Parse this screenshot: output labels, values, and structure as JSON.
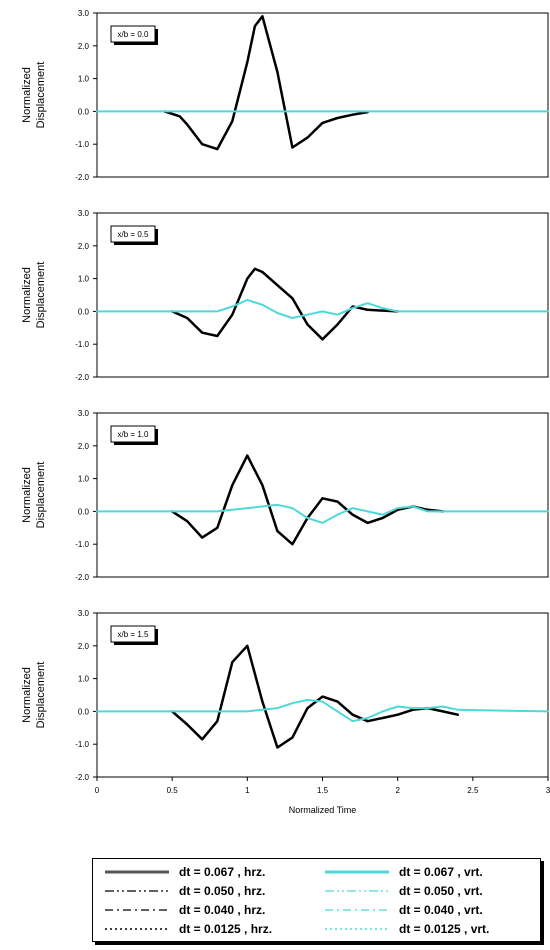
{
  "chart_data": [
    {
      "type": "line",
      "annotation": "x/b = 0.0",
      "ylabel": "Normalized Displacement",
      "ylim": [
        -2.0,
        3.0
      ],
      "xlim": [
        0,
        3
      ],
      "yticks": [
        "3.0",
        "2.0",
        "1.0",
        "0.0",
        "-1.0",
        "-2.0"
      ],
      "ytick_values": [
        3,
        2,
        1,
        0,
        -1,
        -2
      ],
      "grid": false,
      "series": [
        {
          "name": "dt = 0.067 , hrz.",
          "x": [
            0.45,
            0.55,
            0.6,
            0.7,
            0.8,
            0.9,
            1.0,
            1.05,
            1.1,
            1.2,
            1.3,
            1.4,
            1.5,
            1.6,
            1.7,
            1.8
          ],
          "y": [
            0.0,
            -0.15,
            -0.4,
            -1.0,
            -1.15,
            -0.3,
            1.5,
            2.6,
            2.9,
            1.2,
            -1.1,
            -0.8,
            -0.35,
            -0.2,
            -0.1,
            -0.02
          ]
        },
        {
          "name": "dt = 0.067 , vrt.",
          "x": [
            0.0,
            3.0
          ],
          "y": [
            0.0,
            0.0
          ]
        }
      ]
    },
    {
      "type": "line",
      "annotation": "x/b = 0.5",
      "ylabel": "Normalized Displacement",
      "ylim": [
        -2.0,
        3.0
      ],
      "xlim": [
        0,
        3
      ],
      "yticks": [
        "3.0",
        "2.0",
        "1.0",
        "0.0",
        "-1.0",
        "-2.0"
      ],
      "ytick_values": [
        3,
        2,
        1,
        0,
        -1,
        -2
      ],
      "grid": false,
      "series": [
        {
          "name": "dt = 0.067 , hrz.",
          "x": [
            0.5,
            0.6,
            0.7,
            0.8,
            0.9,
            1.0,
            1.05,
            1.1,
            1.2,
            1.3,
            1.4,
            1.5,
            1.6,
            1.7,
            1.8,
            2.0
          ],
          "y": [
            0.0,
            -0.2,
            -0.65,
            -0.75,
            -0.1,
            1.0,
            1.3,
            1.2,
            0.8,
            0.4,
            -0.4,
            -0.85,
            -0.4,
            0.15,
            0.05,
            0.0
          ]
        },
        {
          "name": "dt = 0.067 , vrt.",
          "x": [
            0.0,
            0.8,
            0.9,
            1.0,
            1.1,
            1.2,
            1.3,
            1.4,
            1.5,
            1.6,
            1.7,
            1.8,
            1.9,
            2.0,
            3.0
          ],
          "y": [
            0.0,
            0.0,
            0.15,
            0.35,
            0.2,
            -0.05,
            -0.2,
            -0.1,
            0.0,
            -0.1,
            0.1,
            0.25,
            0.1,
            0.0,
            0.0
          ]
        }
      ]
    },
    {
      "type": "line",
      "annotation": "x/b = 1.0",
      "ylabel": "Normalized Displacement",
      "ylim": [
        -2.0,
        3.0
      ],
      "xlim": [
        0,
        3
      ],
      "yticks": [
        "3.0",
        "2.0",
        "1.0",
        "0.0",
        "-1.0",
        "-2.0"
      ],
      "ytick_values": [
        3,
        2,
        1,
        0,
        -1,
        -2
      ],
      "grid": false,
      "series": [
        {
          "name": "dt = 0.067 , hrz.",
          "x": [
            0.5,
            0.6,
            0.7,
            0.8,
            0.9,
            1.0,
            1.1,
            1.2,
            1.3,
            1.4,
            1.5,
            1.6,
            1.7,
            1.8,
            1.9,
            2.0,
            2.1,
            2.2,
            2.3
          ],
          "y": [
            0.0,
            -0.3,
            -0.8,
            -0.5,
            0.8,
            1.7,
            0.8,
            -0.6,
            -1.0,
            -0.2,
            0.4,
            0.3,
            -0.1,
            -0.35,
            -0.2,
            0.05,
            0.15,
            0.05,
            0.0
          ]
        },
        {
          "name": "dt = 0.067 , vrt.",
          "x": [
            0.0,
            0.8,
            1.0,
            1.2,
            1.3,
            1.4,
            1.5,
            1.6,
            1.7,
            1.8,
            1.9,
            2.0,
            2.1,
            2.2,
            3.0
          ],
          "y": [
            0.0,
            0.0,
            0.1,
            0.2,
            0.1,
            -0.2,
            -0.35,
            -0.1,
            0.1,
            0.0,
            -0.1,
            0.1,
            0.15,
            0.0,
            0.0
          ]
        }
      ]
    },
    {
      "type": "line",
      "annotation": "x/b = 1.5",
      "ylabel": "Normalized Displacement",
      "xlabel": "Normalized Time",
      "ylim": [
        -2.0,
        3.0
      ],
      "xlim": [
        0,
        3
      ],
      "yticks": [
        "3.0",
        "2.0",
        "1.0",
        "0.0",
        "-1.0",
        "-2.0"
      ],
      "ytick_values": [
        3,
        2,
        1,
        0,
        -1,
        -2
      ],
      "xticks": [
        "0",
        "0.5",
        "1",
        "1.5",
        "2",
        "2.5",
        "3"
      ],
      "xtick_values": [
        0,
        0.5,
        1,
        1.5,
        2,
        2.5,
        3
      ],
      "grid": false,
      "series": [
        {
          "name": "dt = 0.067 , hrz.",
          "x": [
            0.5,
            0.6,
            0.7,
            0.8,
            0.9,
            1.0,
            1.1,
            1.2,
            1.3,
            1.4,
            1.5,
            1.6,
            1.7,
            1.8,
            1.9,
            2.0,
            2.1,
            2.2,
            2.3,
            2.4
          ],
          "y": [
            0.0,
            -0.4,
            -0.85,
            -0.3,
            1.5,
            2.0,
            0.3,
            -1.1,
            -0.8,
            0.1,
            0.45,
            0.3,
            -0.1,
            -0.3,
            -0.2,
            -0.1,
            0.05,
            0.1,
            0.0,
            -0.1
          ]
        },
        {
          "name": "dt = 0.067 , vrt.",
          "x": [
            0.0,
            1.0,
            1.2,
            1.3,
            1.4,
            1.5,
            1.6,
            1.7,
            1.8,
            1.9,
            2.0,
            2.1,
            2.2,
            2.3,
            2.4,
            3.0
          ],
          "y": [
            0.0,
            0.0,
            0.1,
            0.25,
            0.35,
            0.3,
            0.0,
            -0.3,
            -0.2,
            0.0,
            0.15,
            0.1,
            0.1,
            0.15,
            0.05,
            0.0
          ]
        }
      ]
    }
  ],
  "legend": {
    "items": [
      {
        "label": "dt = 0.067 , hrz.",
        "color": "#555555",
        "dash": "",
        "width": 3
      },
      {
        "label": "dt = 0.067 , vrt.",
        "color": "#4fd8d8",
        "dash": "",
        "width": 3
      },
      {
        "label": "dt = 0.050 , hrz.",
        "color": "#000000",
        "dash": "9 3 2 3 2 3",
        "width": 1.3
      },
      {
        "label": "dt = 0.050 , vrt.",
        "color": "#4fd8d8",
        "dash": "9 3 2 3 2 3",
        "width": 1.3
      },
      {
        "label": "dt = 0.040 , hrz.",
        "color": "#000000",
        "dash": "8 4 2 4",
        "width": 1.3
      },
      {
        "label": "dt = 0.040 , vrt.",
        "color": "#4fd8d8",
        "dash": "8 4 2 4",
        "width": 1.3
      },
      {
        "label": "dt = 0.0125 , hrz.",
        "color": "#000000",
        "dash": "2 3",
        "width": 1.5
      },
      {
        "label": "dt = 0.0125 , vrt.",
        "color": "#4fd8d8",
        "dash": "2 3",
        "width": 1.5
      }
    ]
  },
  "colors": {
    "horizontal": "#000000",
    "vertical": "#4fd8d8",
    "frame": "#000000"
  }
}
